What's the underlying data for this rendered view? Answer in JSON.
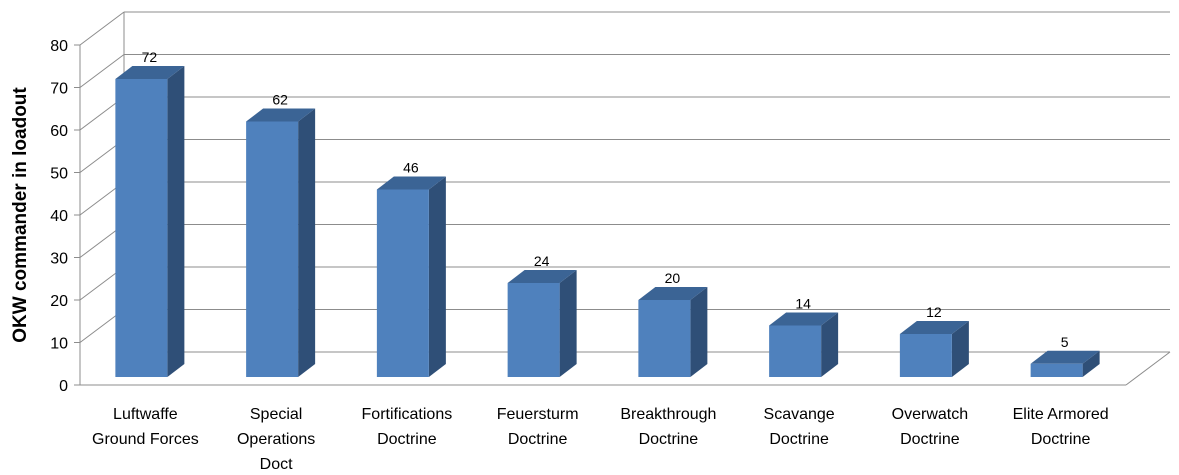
{
  "chart_data": {
    "type": "bar",
    "categories": [
      [
        "Luftwaffe",
        "Ground Forces"
      ],
      [
        "Special",
        "Operations",
        "Doct"
      ],
      [
        "Fortifications",
        "Doctrine"
      ],
      [
        "Feuersturm",
        "Doctrine"
      ],
      [
        "Breakthrough",
        "Doctrine"
      ],
      [
        "Scavange",
        "Doctrine"
      ],
      [
        "Overwatch",
        "Doctrine"
      ],
      [
        "Elite Armored",
        "Doctrine"
      ]
    ],
    "values": [
      72,
      62,
      46,
      24,
      20,
      14,
      12,
      5
    ],
    "ylabel": "OKW commander in loadout",
    "xlabel": "",
    "ylim": [
      0,
      80
    ],
    "yticks": [
      0,
      10,
      20,
      30,
      40,
      50,
      60,
      70,
      80
    ],
    "grid": true,
    "style": "3d",
    "colors": {
      "bar_front": "#4F81BD",
      "bar_side": "#2F4F77",
      "bar_top": "#3B6495",
      "grid": "#8C8C8C"
    }
  }
}
